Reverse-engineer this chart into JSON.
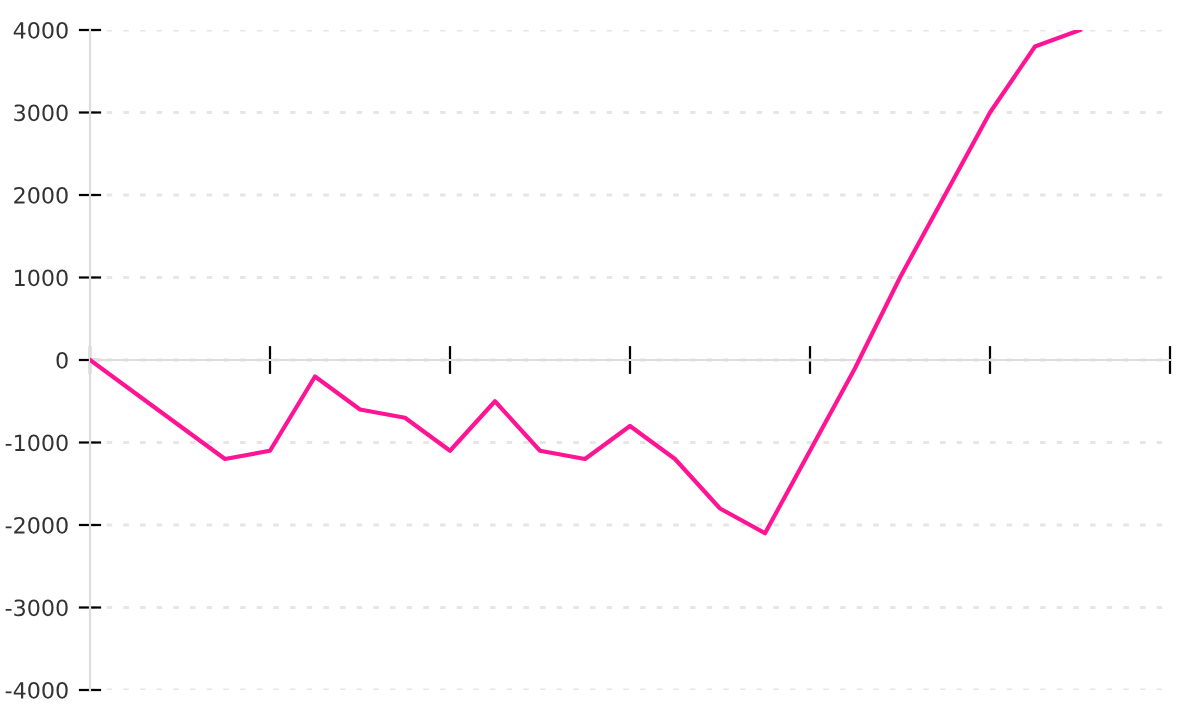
{
  "chart_data": {
    "type": "line",
    "categories": [
      null,
      null,
      null,
      null,
      null,
      null,
      null,
      null,
      null,
      null,
      null,
      null,
      null,
      null,
      null,
      null,
      null,
      null,
      null,
      null,
      null,
      null,
      null,
      null,
      null
    ],
    "series": [
      {
        "color": "#ff1493",
        "values": [
          0,
          -400,
          -800,
          -1200,
          -1100,
          -200,
          -600,
          -700,
          -1100,
          -500,
          -1100,
          -1200,
          -800,
          -1200,
          -1800,
          -2100,
          -1100,
          -100,
          1000,
          2000,
          3000,
          3800,
          4000,
          null,
          null
        ]
      }
    ],
    "ylim": [
      -4000,
      4000
    ],
    "yticks": [
      -4000,
      -3000,
      -2000,
      -1000,
      0,
      1000,
      2000,
      3000,
      4000
    ],
    "grid": "y",
    "tick_labels": "y",
    "line_style": "solid",
    "marker": "none"
  }
}
